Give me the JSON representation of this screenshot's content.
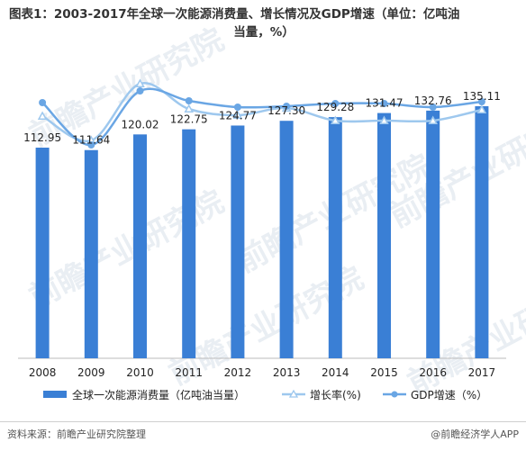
{
  "title": "图表1：2003-2017年全球一次能源消费量、增长情况及GDP增速（单位：亿吨油",
  "title_line2": "当量，%）",
  "source": "资料来源：前瞻产业研究院整理",
  "brand": "@前瞻经济学人APP",
  "colors": {
    "bar": "#3a7fd5",
    "growth_line": "#9ec8ee",
    "gdp_line": "#6aa6e4"
  },
  "chart_data": {
    "type": "bar",
    "categories": [
      "2008",
      "2009",
      "2010",
      "2011",
      "2012",
      "2013",
      "2014",
      "2015",
      "2016",
      "2017"
    ],
    "series": [
      {
        "name": "全球一次能源消费量（亿吨油当量）",
        "values": [
          112.95,
          111.64,
          120.02,
          122.75,
          124.77,
          127.3,
          129.28,
          131.47,
          132.76,
          135.11
        ],
        "labels": [
          "112.95",
          "111.64",
          "120.02",
          "122.75",
          "124.77",
          "127.30",
          "129.28",
          "131.47",
          "132.76",
          "135.11"
        ]
      },
      {
        "name": "增长率(%)",
        "type": "line",
        "values": [
          1.5,
          -1.2,
          5.1,
          2.3,
          1.6,
          2.4,
          1.0,
          1.0,
          1.0,
          2.2
        ]
      },
      {
        "name": "GDP增速（%）",
        "type": "line",
        "values": [
          3.0,
          -1.7,
          4.3,
          3.2,
          2.5,
          2.6,
          2.9,
          2.9,
          2.5,
          3.1
        ]
      }
    ],
    "legend": "bottom"
  }
}
